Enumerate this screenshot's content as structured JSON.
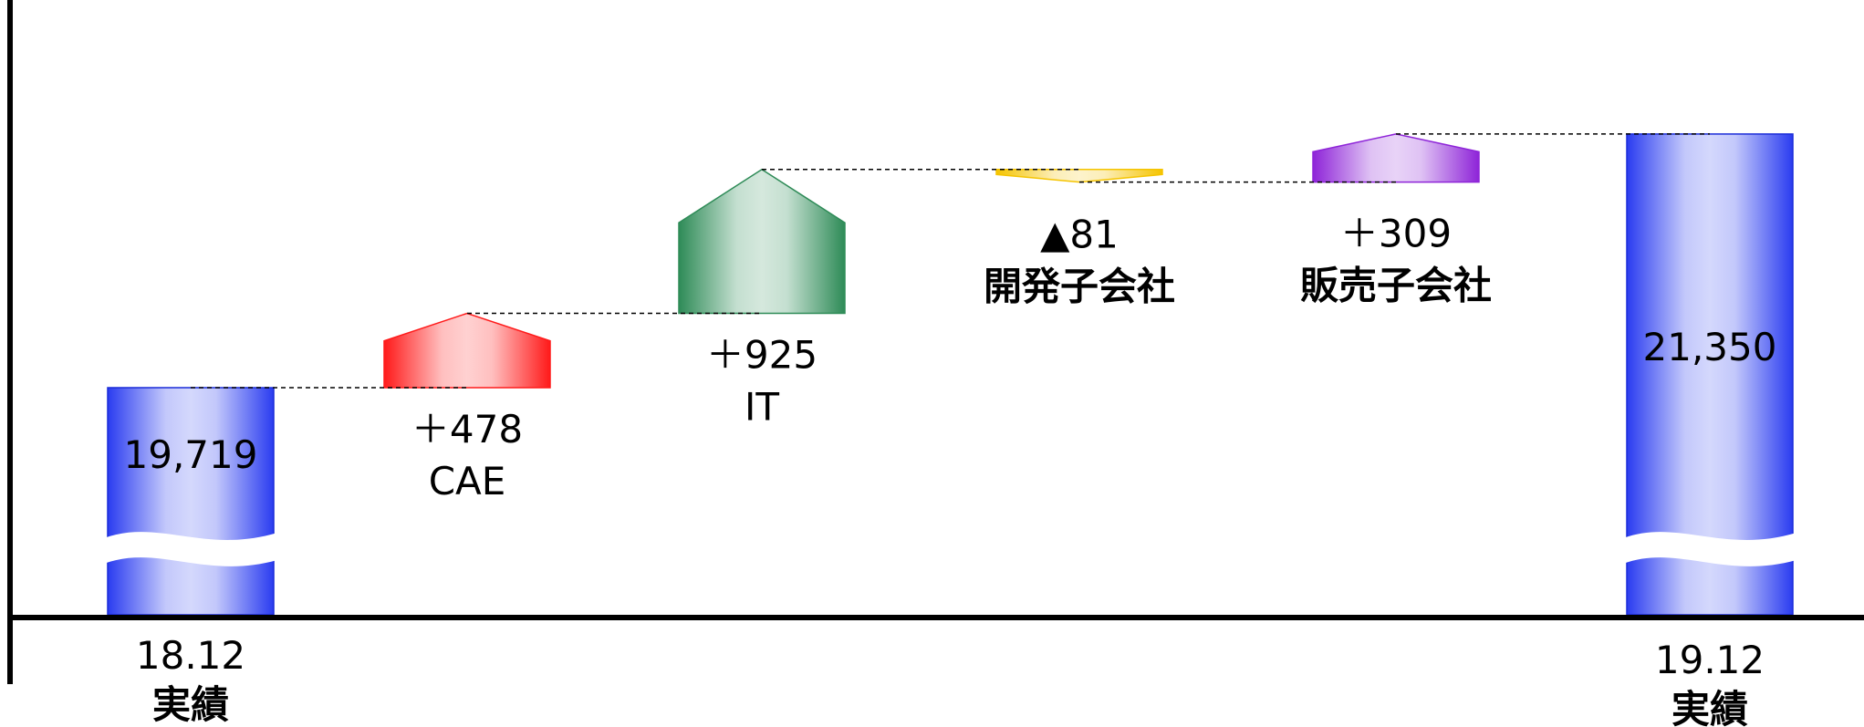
{
  "chart_data": {
    "type": "waterfall",
    "start": {
      "period": "18.12",
      "label": "実績",
      "value": 19719,
      "display": "19,719",
      "color": "#2a3cf0"
    },
    "steps": [
      {
        "name": "CAE",
        "delta": 478,
        "display": "＋478",
        "color": "#ff1a1a"
      },
      {
        "name": "IT",
        "delta": 925,
        "display": "＋925",
        "color": "#2e8b57"
      },
      {
        "name": "開発子会社",
        "delta": -81,
        "display": "▲81",
        "color": "#f5c400"
      },
      {
        "name": "販売子会社",
        "delta": 309,
        "display": "＋309",
        "color": "#8e24d8"
      }
    ],
    "end": {
      "period": "19.12",
      "label": "実績",
      "value": 21350,
      "display": "21,350",
      "color": "#2a3cf0"
    },
    "axis_break": true
  }
}
